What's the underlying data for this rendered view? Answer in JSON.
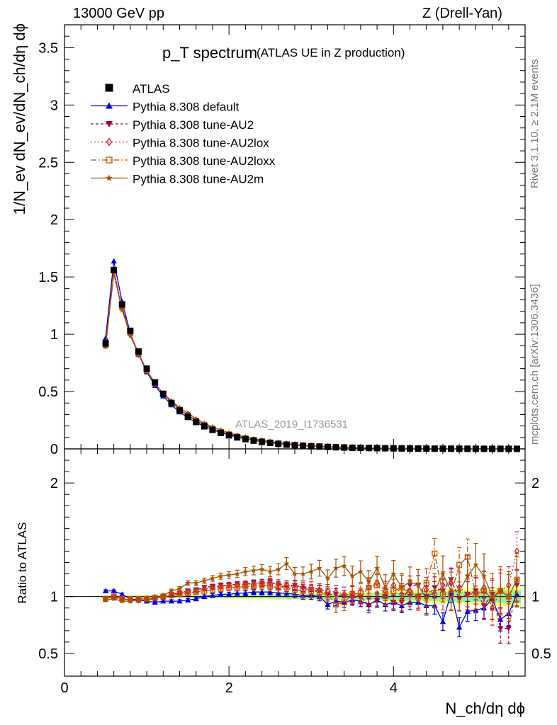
{
  "header": {
    "left": "13000 GeV pp",
    "right": "Z (Drell-Yan)"
  },
  "side_labels": {
    "rivet": "Rivet 3.1.10, ≥ 2.1M events",
    "mcplots": "mcplots.cern.ch [arXiv:1306.3436]"
  },
  "chart_data": {
    "type": "line",
    "title": "p_T spectrum",
    "subtitle": "(ATLAS UE in Z production)",
    "analysis_id": "ATLAS_2019_I1736531",
    "xlabel": "N_ch/dη dϕ",
    "ylabel": "1/N_ev dN_ev/dN_ch/dη dϕ",
    "ratio_ylabel": "Ratio to ATLAS",
    "xlim": [
      0,
      5.6
    ],
    "ylim": [
      0,
      3.7
    ],
    "ratio_ylim": [
      0.3,
      2.3
    ],
    "x_ticks": [
      "0",
      "2",
      "4"
    ],
    "y_ticks": [
      "0",
      "0.5",
      "1",
      "1.5",
      "2",
      "2.5",
      "3",
      "3.5"
    ],
    "ratio_ticks": [
      "0.5",
      "1",
      "2"
    ],
    "legend_position": "top-left",
    "x": [
      0.5,
      0.6,
      0.7,
      0.8,
      0.9,
      1.0,
      1.1,
      1.2,
      1.3,
      1.4,
      1.5,
      1.6,
      1.7,
      1.8,
      1.9,
      2.0,
      2.1,
      2.2,
      2.3,
      2.4,
      2.5,
      2.6,
      2.7,
      2.8,
      2.9,
      3.0,
      3.1,
      3.2,
      3.3,
      3.4,
      3.5,
      3.6,
      3.7,
      3.8,
      3.9,
      4.0,
      4.1,
      4.2,
      4.3,
      4.4,
      4.5,
      4.6,
      4.7,
      4.8,
      4.9,
      5.0,
      5.1,
      5.2,
      5.3,
      5.4,
      5.5
    ],
    "data": {
      "name": "ATLAS",
      "values": [
        0.92,
        1.56,
        1.26,
        1.03,
        0.85,
        0.7,
        0.58,
        0.48,
        0.4,
        0.335,
        0.28,
        0.235,
        0.197,
        0.166,
        0.14,
        0.118,
        0.1,
        0.085,
        0.072,
        0.061,
        0.052,
        0.044,
        0.037,
        0.032,
        0.027,
        0.023,
        0.02,
        0.017,
        0.014,
        0.012,
        0.01,
        0.0087,
        0.0074,
        0.0063,
        0.0054,
        0.0046,
        0.0039,
        0.0033,
        0.0028,
        0.0024,
        0.002,
        0.0017,
        0.0015,
        0.0013,
        0.0011,
        0.00094,
        0.0008,
        0.00068,
        0.00058,
        0.0005,
        0.00042
      ]
    },
    "series": [
      {
        "name": "Pythia 8.308 default",
        "color": "#0000dd",
        "marker": "triangle-up",
        "dash": "",
        "ratio": [
          1.05,
          1.05,
          1.02,
          0.98,
          0.97,
          0.96,
          0.95,
          0.96,
          0.96,
          0.96,
          0.97,
          0.98,
          1.0,
          1.01,
          1.02,
          1.02,
          1.03,
          1.03,
          1.04,
          1.04,
          1.04,
          1.03,
          1.03,
          1.02,
          1.01,
          1.01,
          1.0,
          0.93,
          0.96,
          0.95,
          0.97,
          0.96,
          0.93,
          0.97,
          0.93,
          0.95,
          0.92,
          0.95,
          0.95,
          0.92,
          0.92,
          0.78,
          1.03,
          0.73,
          0.87,
          0.88,
          0.9,
          0.98,
          0.8,
          0.85,
          1.02
        ]
      },
      {
        "name": "Pythia 8.308 tune-AU2",
        "color": "#99004c",
        "marker": "triangle-down",
        "dash": "4,3",
        "ratio": [
          0.98,
          0.99,
          0.98,
          0.97,
          0.98,
          0.98,
          0.98,
          1.0,
          1.02,
          1.03,
          1.05,
          1.06,
          1.08,
          1.09,
          1.1,
          1.1,
          1.11,
          1.11,
          1.12,
          1.12,
          1.13,
          1.1,
          1.08,
          1.1,
          1.07,
          1.06,
          1.05,
          1.02,
          1.02,
          1.0,
          0.99,
          1.0,
          0.92,
          0.97,
          1.0,
          0.95,
          0.95,
          1.1,
          1.1,
          1.0,
          1.08,
          1.05,
          1.15,
          0.98,
          1.02,
          1.05,
          0.92,
          1.02,
          0.72,
          0.72,
          1.1
        ]
      },
      {
        "name": "Pythia 8.308 tune-AU2lox",
        "color": "#cc1a33",
        "marker": "diamond-open",
        "dash": "2,3",
        "ratio": [
          0.98,
          1.0,
          0.98,
          0.97,
          0.97,
          0.98,
          0.99,
          1.0,
          1.02,
          1.03,
          1.04,
          1.05,
          1.07,
          1.08,
          1.09,
          1.1,
          1.1,
          1.11,
          1.11,
          1.12,
          1.12,
          1.11,
          1.1,
          1.1,
          1.08,
          1.08,
          1.06,
          1.05,
          1.04,
          1.02,
          1.02,
          1.0,
          1.08,
          1.12,
          1.05,
          1.1,
          1.02,
          1.05,
          1.0,
          1.06,
          1.02,
          1.1,
          1.12,
          1.08,
          1.02,
          1.03,
          1.08,
          0.9,
          1.05,
          1.1,
          1.4
        ]
      },
      {
        "name": "Pythia 8.308 tune-AU2loxx",
        "color": "#cc4d00",
        "marker": "square-open",
        "dash": "8,3,2,3",
        "ratio": [
          0.98,
          1.0,
          0.98,
          0.98,
          0.98,
          0.98,
          0.99,
          1.0,
          1.01,
          1.02,
          1.03,
          1.04,
          1.05,
          1.06,
          1.07,
          1.08,
          1.08,
          1.09,
          1.09,
          1.1,
          1.09,
          1.08,
          1.08,
          1.06,
          1.05,
          1.05,
          1.04,
          1.02,
          0.93,
          0.95,
          1.02,
          1.03,
          1.08,
          1.1,
          1.02,
          1.05,
          1.08,
          1.03,
          1.0,
          1.12,
          1.38,
          1.02,
          1.02,
          1.28,
          1.35,
          1.02,
          1.05,
          0.98,
          1.05,
          1.0,
          1.15
        ]
      },
      {
        "name": "Pythia 8.308 tune-AU2m",
        "color": "#a35200",
        "marker": "star",
        "dash": "",
        "ratio": [
          0.97,
          0.98,
          0.96,
          0.96,
          0.97,
          0.97,
          0.98,
          1.01,
          1.05,
          1.07,
          1.12,
          1.12,
          1.14,
          1.16,
          1.18,
          1.19,
          1.2,
          1.22,
          1.23,
          1.24,
          1.22,
          1.24,
          1.29,
          1.2,
          1.2,
          1.22,
          1.25,
          1.16,
          1.25,
          1.27,
          1.18,
          1.22,
          1.13,
          1.25,
          1.08,
          1.2,
          1.08,
          1.13,
          1.1,
          0.98,
          1.05,
          1.2,
          1.05,
          1.05,
          1.18,
          1.28,
          1.18,
          1.0,
          1.05,
          1.0,
          1.15
        ]
      }
    ]
  }
}
